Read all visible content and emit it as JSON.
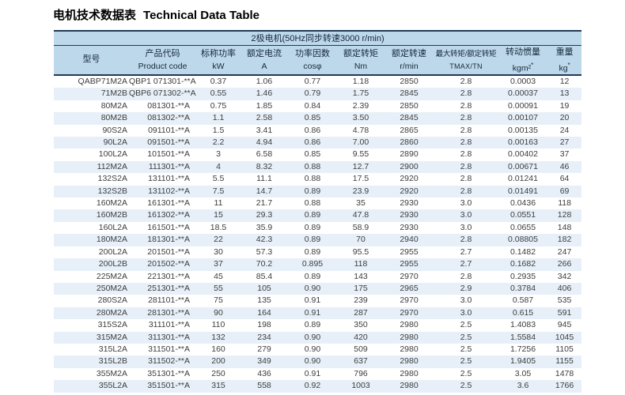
{
  "page": {
    "title_zh": "电机技术数据表",
    "title_en": "Technical Data Table"
  },
  "table": {
    "banner": "2极电机(50Hz同步转速3000 r/min)",
    "columns": [
      {
        "zh": "型号",
        "unit": ""
      },
      {
        "zh": "产品代码",
        "unit": "Product code"
      },
      {
        "zh": "标称功率",
        "unit": "kW"
      },
      {
        "zh": "额定电流",
        "unit": "A"
      },
      {
        "zh": "功率因数",
        "unit": "cosφ"
      },
      {
        "zh": "额定转矩",
        "unit": "Nm"
      },
      {
        "zh": "额定转速",
        "unit": "r/min"
      },
      {
        "zh": "最大转矩/额定转矩",
        "unit": "TMAX/TN"
      },
      {
        "zh": "转动惯量",
        "unit": "kgm²",
        "sup": "*"
      },
      {
        "zh": "重量",
        "unit": "kg",
        "sup": "*"
      }
    ],
    "rows": [
      [
        "QABP71M2A",
        "QBP1 071301-**A",
        "0.37",
        "1.06",
        "0.77",
        "1.18",
        "2850",
        "2.8",
        "0.0003",
        "12"
      ],
      [
        "71M2B",
        "QBP6 071302-**A",
        "0.55",
        "1.46",
        "0.79",
        "1.75",
        "2845",
        "2.8",
        "0.00037",
        "13"
      ],
      [
        "80M2A",
        "081301-**A",
        "0.75",
        "1.85",
        "0.84",
        "2.39",
        "2850",
        "2.8",
        "0.00091",
        "19"
      ],
      [
        "80M2B",
        "081302-**A",
        "1.1",
        "2.58",
        "0.85",
        "3.50",
        "2845",
        "2.8",
        "0.00107",
        "20"
      ],
      [
        "90S2A",
        "091101-**A",
        "1.5",
        "3.41",
        "0.86",
        "4.78",
        "2865",
        "2.8",
        "0.00135",
        "24"
      ],
      [
        "90L2A",
        "091501-**A",
        "2.2",
        "4.94",
        "0.86",
        "7.00",
        "2860",
        "2.8",
        "0.00163",
        "27"
      ],
      [
        "100L2A",
        "101501-**A",
        "3",
        "6.58",
        "0.85",
        "9.55",
        "2890",
        "2.8",
        "0.00402",
        "37"
      ],
      [
        "112M2A",
        "111301-**A",
        "4",
        "8.32",
        "0.88",
        "12.7",
        "2900",
        "2.8",
        "0.00671",
        "46"
      ],
      [
        "132S2A",
        "131101-**A",
        "5.5",
        "11.1",
        "0.88",
        "17.5",
        "2920",
        "2.8",
        "0.01241",
        "64"
      ],
      [
        "132S2B",
        "131102-**A",
        "7.5",
        "14.7",
        "0.89",
        "23.9",
        "2920",
        "2.8",
        "0.01491",
        "69"
      ],
      [
        "160M2A",
        "161301-**A",
        "11",
        "21.7",
        "0.88",
        "35",
        "2930",
        "3.0",
        "0.0436",
        "118"
      ],
      [
        "160M2B",
        "161302-**A",
        "15",
        "29.3",
        "0.89",
        "47.8",
        "2930",
        "3.0",
        "0.0551",
        "128"
      ],
      [
        "160L2A",
        "161501-**A",
        "18.5",
        "35.9",
        "0.89",
        "58.9",
        "2930",
        "3.0",
        "0.0655",
        "148"
      ],
      [
        "180M2A",
        "181301-**A",
        "22",
        "42.3",
        "0.89",
        "70",
        "2940",
        "2.8",
        "0.08805",
        "182"
      ],
      [
        "200L2A",
        "201501-**A",
        "30",
        "57.3",
        "0.89",
        "95.5",
        "2955",
        "2.7",
        "0.1482",
        "247"
      ],
      [
        "200L2B",
        "201502-**A",
        "37",
        "70.2",
        "0.895",
        "118",
        "2955",
        "2.7",
        "0.1682",
        "266"
      ],
      [
        "225M2A",
        "221301-**A",
        "45",
        "85.4",
        "0.89",
        "143",
        "2970",
        "2.8",
        "0.2935",
        "342"
      ],
      [
        "250M2A",
        "251301-**A",
        "55",
        "105",
        "0.90",
        "175",
        "2965",
        "2.9",
        "0.3784",
        "406"
      ],
      [
        "280S2A",
        "281101-**A",
        "75",
        "135",
        "0.91",
        "239",
        "2970",
        "3.0",
        "0.587",
        "535"
      ],
      [
        "280M2A",
        "281301-**A",
        "90",
        "164",
        "0.91",
        "287",
        "2970",
        "3.0",
        "0.615",
        "591"
      ],
      [
        "315S2A",
        "311101-**A",
        "110",
        "198",
        "0.89",
        "350",
        "2980",
        "2.5",
        "1.4083",
        "945"
      ],
      [
        "315M2A",
        "311301-**A",
        "132",
        "234",
        "0.90",
        "420",
        "2980",
        "2.5",
        "1.5584",
        "1045"
      ],
      [
        "315L2A",
        "311501-**A",
        "160",
        "279",
        "0.90",
        "509",
        "2980",
        "2.5",
        "1.7256",
        "1105"
      ],
      [
        "315L2B",
        "311502-**A",
        "200",
        "349",
        "0.90",
        "637",
        "2980",
        "2.5",
        "1.9405",
        "1155"
      ],
      [
        "355M2A",
        "351301-**A",
        "250",
        "436",
        "0.91",
        "796",
        "2980",
        "2.5",
        "3.05",
        "1478"
      ],
      [
        "355L2A",
        "351501-**A",
        "315",
        "558",
        "0.92",
        "1003",
        "2980",
        "2.5",
        "3.6",
        "1766"
      ]
    ]
  },
  "colors": {
    "header_bg": "#bdd8ea",
    "stripe_bg": "#e7f0f8",
    "rule": "#1f3a55",
    "data_text": "#3d3d3d",
    "head_text": "#16293b"
  }
}
